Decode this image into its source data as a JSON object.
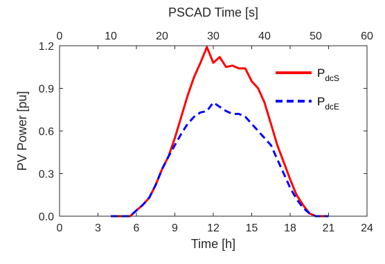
{
  "chart_data": {
    "type": "line",
    "xlabel": "Time [h]",
    "ylabel": "PV Power [pu]",
    "x2label": "PSCAD Time [s]",
    "xlim": [
      0,
      24
    ],
    "ylim": [
      0,
      1.2
    ],
    "x2lim": [
      0,
      60
    ],
    "xticks": [
      "0",
      "3",
      "6",
      "9",
      "12",
      "15",
      "18",
      "21",
      "24"
    ],
    "yticks": [
      "0.0",
      "0.3",
      "0.6",
      "0.9",
      "1.2"
    ],
    "x2ticks": [
      "0",
      "10",
      "20",
      "30",
      "40",
      "50",
      "60"
    ],
    "grid": false,
    "legend_position": "top-right",
    "series": [
      {
        "name": "P",
        "name_sub": "dcS",
        "color": "#ff0000",
        "style": "solid",
        "points": [
          [
            4.0,
            0.0
          ],
          [
            5.5,
            0.0
          ],
          [
            6.0,
            0.04
          ],
          [
            6.5,
            0.08
          ],
          [
            7.0,
            0.13
          ],
          [
            7.5,
            0.22
          ],
          [
            8.0,
            0.33
          ],
          [
            8.5,
            0.42
          ],
          [
            9.0,
            0.55
          ],
          [
            9.5,
            0.7
          ],
          [
            10.0,
            0.85
          ],
          [
            10.5,
            0.98
          ],
          [
            11.0,
            1.08
          ],
          [
            11.5,
            1.19
          ],
          [
            12.0,
            1.08
          ],
          [
            12.5,
            1.12
          ],
          [
            13.0,
            1.05
          ],
          [
            13.5,
            1.06
          ],
          [
            14.0,
            1.04
          ],
          [
            14.5,
            1.04
          ],
          [
            15.0,
            0.95
          ],
          [
            15.5,
            0.9
          ],
          [
            16.0,
            0.8
          ],
          [
            16.5,
            0.65
          ],
          [
            17.0,
            0.5
          ],
          [
            17.5,
            0.38
          ],
          [
            18.0,
            0.26
          ],
          [
            18.5,
            0.15
          ],
          [
            19.0,
            0.08
          ],
          [
            19.5,
            0.02
          ],
          [
            20.0,
            0.0
          ],
          [
            21.0,
            0.0
          ]
        ]
      },
      {
        "name": "P",
        "name_sub": "dcE",
        "color": "#0000ff",
        "style": "dashed",
        "points": [
          [
            4.0,
            0.0
          ],
          [
            5.5,
            0.0
          ],
          [
            6.0,
            0.04
          ],
          [
            6.5,
            0.08
          ],
          [
            7.0,
            0.13
          ],
          [
            7.5,
            0.22
          ],
          [
            8.0,
            0.33
          ],
          [
            8.5,
            0.42
          ],
          [
            9.0,
            0.5
          ],
          [
            9.5,
            0.58
          ],
          [
            10.0,
            0.65
          ],
          [
            10.5,
            0.7
          ],
          [
            11.0,
            0.73
          ],
          [
            11.5,
            0.74
          ],
          [
            12.0,
            0.8
          ],
          [
            12.5,
            0.77
          ],
          [
            13.0,
            0.74
          ],
          [
            13.5,
            0.72
          ],
          [
            14.0,
            0.72
          ],
          [
            14.5,
            0.7
          ],
          [
            15.0,
            0.65
          ],
          [
            15.5,
            0.6
          ],
          [
            16.0,
            0.55
          ],
          [
            16.5,
            0.5
          ],
          [
            17.0,
            0.4
          ],
          [
            17.5,
            0.3
          ],
          [
            18.0,
            0.2
          ],
          [
            18.5,
            0.12
          ],
          [
            19.0,
            0.06
          ],
          [
            19.5,
            0.02
          ],
          [
            20.0,
            0.0
          ],
          [
            21.0,
            0.0
          ]
        ]
      }
    ]
  }
}
